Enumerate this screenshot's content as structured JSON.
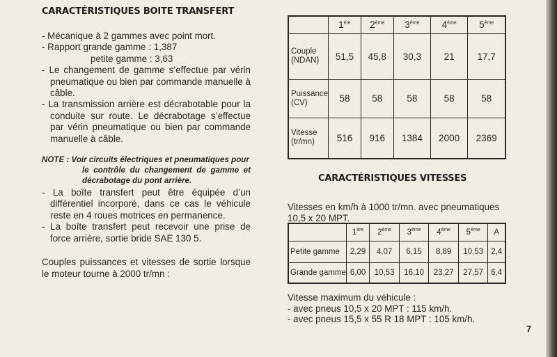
{
  "left": {
    "title": "CARACTÉRISTIQUES BOITE TRANSFERT",
    "items": [
      "- Mécanique à 2 gammes avec point mort.",
      "- Rapport grande gamme : 1,387",
      "petite gamme  : 3,63",
      "- Le changement de gamme s’effectue par vérin pneumatique ou bien par commande manuelle à câble.",
      "- La transmission arrière est décrabotable pour la conduite sur route. Le décrabotage s’effectue par vérin pneumatique ou bien par commande manuelle à câble."
    ],
    "note_label": "NOTE :",
    "note_text": "Voir circuits électriques et pneumatiques pour",
    "note_rest": "le contrôle du changement de gamme et décrabotage du pont arrière.",
    "items2": [
      "- La boîte transfert peut être équipée d’un différentiel incorporé, dans ce cas le véhicule reste en 4 roues motrices en permanence.",
      "- La boîte transfert peut recevoir une prise de force arrière, sortie bride SAE 130 5."
    ],
    "intro": "Couples puissances et vitesses de sortie lorsque le moteur tourne à 2000 tr/mn :"
  },
  "table1": {
    "headers": [
      [
        "1",
        "ère"
      ],
      [
        "2",
        "ème"
      ],
      [
        "3",
        "ème"
      ],
      [
        "4",
        "ème"
      ],
      [
        "5",
        "ème"
      ]
    ],
    "rows": [
      {
        "label": [
          "Couple",
          "(NDAN)"
        ],
        "values": [
          "51,5",
          "45,8",
          "30,3",
          "21",
          "17,7"
        ]
      },
      {
        "label": [
          "Puissance",
          "(CV)"
        ],
        "values": [
          "58",
          "58",
          "58",
          "58",
          "58"
        ]
      },
      {
        "label": [
          "Vitesse",
          "(tr/mn)"
        ],
        "values": [
          "516",
          "916",
          "1384",
          "2000",
          "2369"
        ]
      }
    ]
  },
  "right": {
    "title": "CARACTÉRISTIQUES VITESSES",
    "intro": "Vitesses en km/h à 1000 tr/mn. avec pneumatiques 10,5 x 20 MPT.",
    "max_title": "Vitesse maximum du véhicule :",
    "max1": "- avec pneus 10,5 x 20 MPT : 115 km/h.",
    "max2": "- avec pneus 15,5 x 55 R 18 MPT : 105 km/h."
  },
  "table2": {
    "headers": [
      [
        "1",
        "ère"
      ],
      [
        "2",
        "ème"
      ],
      [
        "3",
        "ème"
      ],
      [
        "4",
        "ème"
      ],
      [
        "5",
        "ème"
      ],
      [
        "A",
        ""
      ]
    ],
    "rows": [
      {
        "label": "Petite gamme",
        "values": [
          "2,29",
          "4,07",
          "6,15",
          "8,89",
          "10,53",
          "2,4"
        ]
      },
      {
        "label": "Grande gamme",
        "values": [
          "6,00",
          "10,53",
          "16,10",
          "23,27",
          "27,57",
          "6,4"
        ]
      }
    ]
  },
  "page_number": "7"
}
